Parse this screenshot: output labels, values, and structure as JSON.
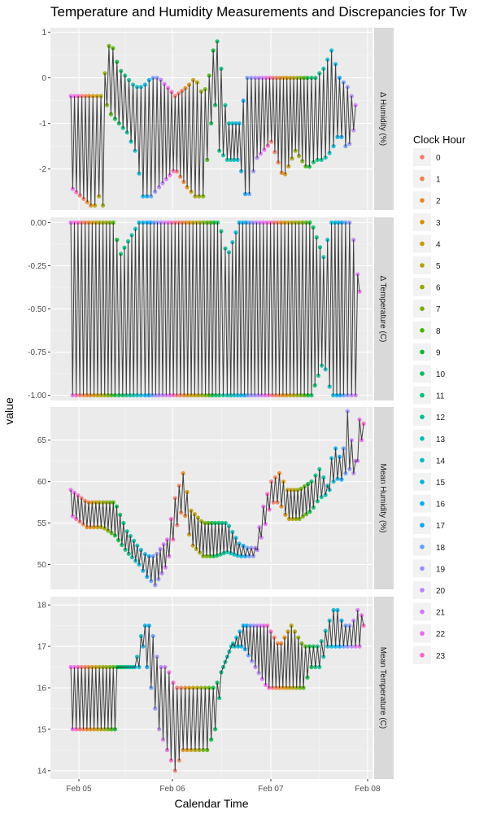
{
  "chart_data": {
    "type": "line",
    "title": "Temperature and Humidity Measurements and Discrepancies for Tw",
    "xlabel": "Calendar Time",
    "ylabel": "value",
    "x_ticks": [
      "Feb 05",
      "Feb 06",
      "Feb 07",
      "Feb 08"
    ],
    "x_range": [
      "2022-02-04 17:00",
      "2022-02-08 00:30"
    ],
    "grid": true,
    "legend": {
      "title": "Clock Hour",
      "placement": "right",
      "entries": [
        "0",
        "1",
        "2",
        "3",
        "4",
        "5",
        "6",
        "7",
        "8",
        "9",
        "10",
        "11",
        "12",
        "13",
        "14",
        "15",
        "16",
        "17",
        "18",
        "19",
        "20",
        "21",
        "22",
        "23"
      ],
      "colors": [
        "#F8766D",
        "#F27D52",
        "#E7851E",
        "#D89000",
        "#C69900",
        "#B0A100",
        "#97A900",
        "#77AF00",
        "#48B500",
        "#00BA38",
        "#00BD5C",
        "#00C079",
        "#00C094",
        "#00BFAD",
        "#00BCC4",
        "#00B8D9",
        "#00B0EC",
        "#00A6FB",
        "#619CFF",
        "#9590FF",
        "#B983FF",
        "#D676F8",
        "#ED68ED",
        "#FF61C3"
      ]
    },
    "panels": [
      {
        "strip": "Δ Humidity (%)",
        "ylim": [
          -2.9,
          1.1
        ],
        "yticks": [
          1,
          0,
          -1,
          -2
        ],
        "ytick_labels": [
          "1",
          "0",
          "-1",
          "-2"
        ],
        "series": [
          {
            "x": [
              "2022-02-04 22:00",
              "2022-02-05 03:00",
              "2022-02-05 04:00",
              "2022-02-05 05:00",
              "2022-02-05 06:00",
              "2022-02-05 07:00",
              "2022-02-05 08:00",
              "2022-02-05 10:00",
              "2022-02-05 12:00",
              "2022-02-05 14:00",
              "2022-02-05 16:00",
              "2022-02-05 18:00",
              "2022-02-05 20:00",
              "2022-02-06 00:00",
              "2022-02-06 03:00",
              "2022-02-06 05:00",
              "2022-02-06 07:00",
              "2022-02-06 09:00",
              "2022-02-06 10:00",
              "2022-02-06 11:00",
              "2022-02-06 13:00",
              "2022-02-06 16:00",
              "2022-02-06 18:00",
              "2022-02-06 20:00",
              "2022-02-07 00:00",
              "2022-02-07 03:00",
              "2022-02-07 06:00",
              "2022-02-07 09:00",
              "2022-02-07 11:00",
              "2022-02-07 13:00",
              "2022-02-07 15:00",
              "2022-02-07 17:00",
              "2022-02-07 19:00",
              "2022-02-07 21:00"
            ],
            "max": [
              -0.4,
              -0.4,
              -0.4,
              -0.4,
              -0.4,
              0.6,
              0.8,
              0.2,
              0.0,
              -0.2,
              -0.2,
              0.0,
              0.0,
              -0.4,
              -0.2,
              0.0,
              -0.4,
              0.2,
              1.0,
              0.6,
              -1.0,
              -1.0,
              0.0,
              0.0,
              0.0,
              0.0,
              0.0,
              0.0,
              0.0,
              0.2,
              0.6,
              0.0,
              -0.2,
              -0.6
            ],
            "min": [
              -2.4,
              -2.8,
              -2.8,
              -2.6,
              -2.8,
              -0.6,
              -0.8,
              -1.0,
              -1.2,
              -1.6,
              -2.6,
              -2.6,
              -2.4,
              -2.0,
              -2.4,
              -2.6,
              -2.6,
              -1.0,
              -0.6,
              -1.6,
              -1.8,
              -1.8,
              -2.8,
              -1.8,
              -1.4,
              -2.2,
              -1.6,
              -2.0,
              -1.8,
              -1.8,
              -1.6,
              -1.2,
              -1.6,
              -1.0
            ]
          }
        ]
      },
      {
        "strip": "Δ Temperature (C)",
        "ylim": [
          -1.03,
          0.03
        ],
        "yticks": [
          0,
          -0.25,
          -0.5,
          -0.75,
          -1
        ],
        "ytick_labels": [
          "0.00",
          "-0.25",
          "-0.50",
          "-0.75",
          "-1.00"
        ],
        "series": [
          {
            "x": [
              "2022-02-04 22:00",
              "2022-02-05 02:00",
              "2022-02-05 06:00",
              "2022-02-05 09:00",
              "2022-02-05 10:00",
              "2022-02-05 15:00",
              "2022-02-05 17:00",
              "2022-02-05 20:00",
              "2022-02-06 00:00",
              "2022-02-06 04:00",
              "2022-02-06 08:00",
              "2022-02-06 11:00",
              "2022-02-06 13:00",
              "2022-02-06 16:00",
              "2022-02-06 19:00",
              "2022-02-06 22:00",
              "2022-02-07 02:00",
              "2022-02-07 06:00",
              "2022-02-07 10:00",
              "2022-02-07 13:00",
              "2022-02-07 15:00",
              "2022-02-07 18:00",
              "2022-02-07 20:00",
              "2022-02-07 22:00"
            ],
            "max": [
              0,
              0,
              0,
              0,
              -0.2,
              0,
              0,
              0,
              0,
              0,
              0,
              0,
              -0.2,
              0,
              0,
              0,
              0,
              0,
              0,
              -0.2,
              0,
              0,
              0,
              -0.4
            ],
            "min": [
              -1,
              -1,
              -1,
              -1,
              -1,
              -1,
              -1,
              -1,
              -1,
              -1,
              -1,
              -1,
              -1,
              -1,
              -1,
              -1,
              -1,
              -1,
              -1,
              -0.8,
              -1,
              -1,
              -1,
              -1
            ]
          }
        ]
      },
      {
        "strip": "Mean Humidity (%)",
        "ylim": [
          47,
          69
        ],
        "yticks": [
          65,
          60,
          55,
          50
        ],
        "ytick_labels": [
          "65",
          "60",
          "55",
          "50"
        ],
        "series": [
          {
            "x": [
              "2022-02-04 22:00",
              "2022-02-05 02:00",
              "2022-02-05 06:00",
              "2022-02-05 09:00",
              "2022-02-05 12:00",
              "2022-02-05 15:00",
              "2022-02-05 17:00",
              "2022-02-05 19:00",
              "2022-02-05 22:00",
              "2022-02-06 00:00",
              "2022-02-06 02:00",
              "2022-02-06 04:00",
              "2022-02-06 07:00",
              "2022-02-06 10:00",
              "2022-02-06 13:00",
              "2022-02-06 16:00",
              "2022-02-06 18:00",
              "2022-02-06 20:00",
              "2022-02-06 22:00",
              "2022-02-07 00:00",
              "2022-02-07 02:00",
              "2022-02-07 04:00",
              "2022-02-07 07:00",
              "2022-02-07 10:00",
              "2022-02-07 12:00",
              "2022-02-07 14:00",
              "2022-02-07 15:30",
              "2022-02-07 17:00",
              "2022-02-07 18:00",
              "2022-02-07 19:00",
              "2022-02-07 20:00",
              "2022-02-07 21:00",
              "2022-02-07 22:00",
              "2022-02-07 23:00"
            ],
            "max": [
              59.0,
              57.5,
              57.5,
              57.5,
              54.0,
              52.0,
              51.0,
              51.0,
              53.0,
              58.0,
              61.0,
              56.5,
              55.0,
              55.0,
              55.0,
              52.5,
              52.0,
              52.0,
              57.0,
              60.0,
              61.0,
              59.0,
              59.0,
              60.0,
              61.5,
              59.5,
              64.5,
              63.0,
              64.0,
              68.5,
              65.0,
              62.5,
              67.5,
              67.0
            ],
            "min": [
              56.0,
              54.5,
              54.5,
              53.5,
              51.5,
              50.0,
              48.5,
              47.5,
              50.0,
              54.0,
              57.0,
              52.5,
              51.0,
              51.0,
              51.5,
              51.0,
              51.0,
              51.0,
              54.0,
              57.5,
              57.5,
              55.5,
              55.5,
              56.5,
              58.0,
              58.5,
              60.0,
              60.5,
              60.0,
              62.0,
              61.0,
              61.0,
              64.0,
              66.0
            ]
          }
        ]
      },
      {
        "strip": "Mean Temperature (C)",
        "ylim": [
          13.8,
          18.2
        ],
        "yticks": [
          18,
          17,
          16,
          15,
          14
        ],
        "ytick_labels": [
          "18",
          "17",
          "16",
          "15",
          "14"
        ],
        "series": [
          {
            "x": [
              "2022-02-04 22:00",
              "2022-02-05 02:00",
              "2022-02-05 06:00",
              "2022-02-05 09:00",
              "2022-02-05 10:00",
              "2022-02-05 12:00",
              "2022-02-05 14:00",
              "2022-02-05 15:00",
              "2022-02-05 16:00",
              "2022-02-05 18:00",
              "2022-02-05 20:00",
              "2022-02-05 22:00",
              "2022-02-06 00:00",
              "2022-02-06 02:00",
              "2022-02-06 04:00",
              "2022-02-06 06:00",
              "2022-02-06 08:00",
              "2022-02-06 10:00",
              "2022-02-06 12:00",
              "2022-02-06 14:00",
              "2022-02-06 17:00",
              "2022-02-06 20:00",
              "2022-02-06 23:00",
              "2022-02-07 02:00",
              "2022-02-07 05:00",
              "2022-02-07 08:00",
              "2022-02-07 10:00",
              "2022-02-07 12:00",
              "2022-02-07 14:00",
              "2022-02-07 16:00",
              "2022-02-07 18:00",
              "2022-02-07 20:00",
              "2022-02-07 22:00",
              "2022-02-07 23:00"
            ],
            "max": [
              16.5,
              16.5,
              16.5,
              16.5,
              16.5,
              16.5,
              16.5,
              17.0,
              17.5,
              17.5,
              16.5,
              16.5,
              16.0,
              16.0,
              16.0,
              16.0,
              16.0,
              16.0,
              16.5,
              17.0,
              17.5,
              17.5,
              17.5,
              17.0,
              17.5,
              17.0,
              17.0,
              17.0,
              17.5,
              18.0,
              17.5,
              17.5,
              18.0,
              17.5
            ],
            "min": [
              15.0,
              15.0,
              15.0,
              15.0,
              16.5,
              16.5,
              16.5,
              16.5,
              17.0,
              16.0,
              15.0,
              14.5,
              14.0,
              14.5,
              14.5,
              14.5,
              14.5,
              15.0,
              16.5,
              17.0,
              17.0,
              16.5,
              16.0,
              16.0,
              16.0,
              16.0,
              16.5,
              16.5,
              17.0,
              17.0,
              17.0,
              17.0,
              17.0,
              17.0
            ]
          }
        ]
      }
    ]
  }
}
